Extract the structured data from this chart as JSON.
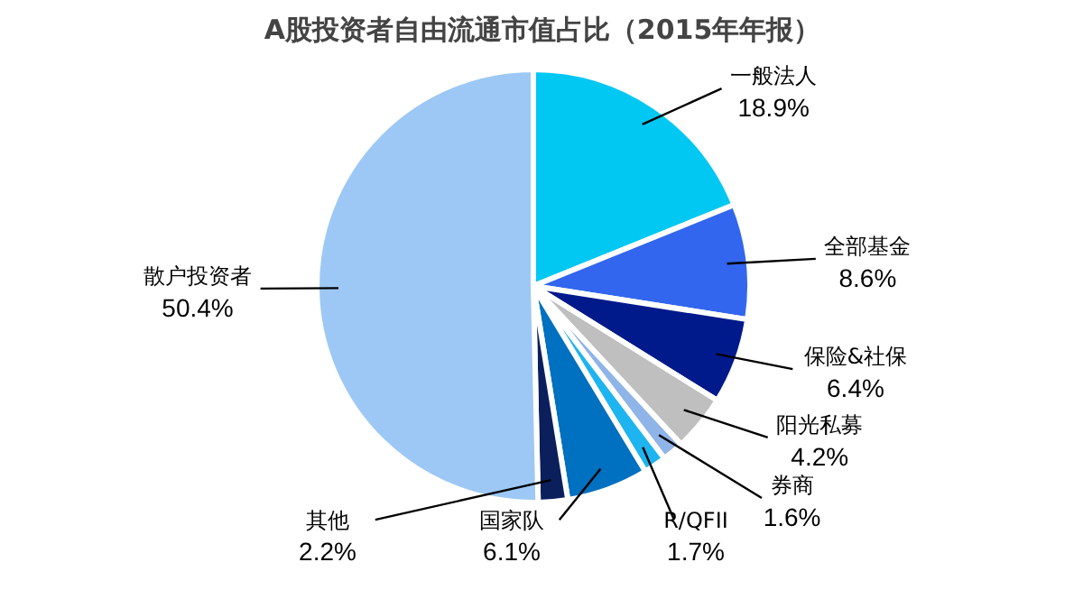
{
  "chart_data": {
    "type": "pie",
    "title": "A股投资者自由流通市值占比（2015年年报）",
    "categories": [
      "一般法人",
      "全部基金",
      "保险&社保",
      "阳光私募",
      "券商",
      "R/QFII",
      "国家队",
      "其他",
      "散户投资者"
    ],
    "values": [
      18.9,
      8.6,
      6.4,
      4.2,
      1.6,
      1.7,
      6.1,
      2.2,
      50.4
    ],
    "colors": [
      "#00c8f2",
      "#3366ee",
      "#001a8c",
      "#bfbfbf",
      "#8fb4e8",
      "#1eb4f0",
      "#0070c0",
      "#0a1f5c",
      "#9dc8f5"
    ],
    "value_labels": [
      "18.9%",
      "8.6%",
      "6.4%",
      "4.2%",
      "1.6%",
      "1.7%",
      "6.1%",
      "2.2%",
      "50.4%"
    ],
    "legend": false
  }
}
